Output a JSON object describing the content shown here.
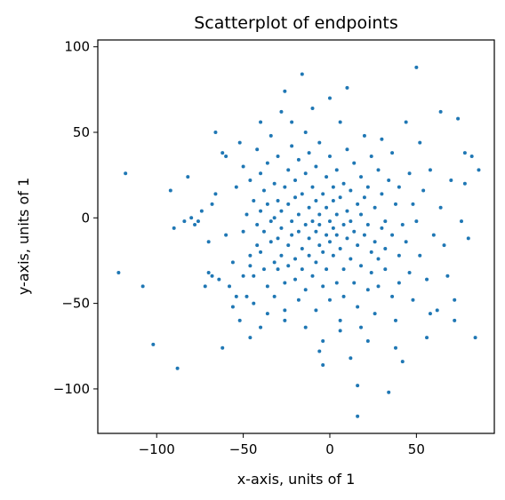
{
  "chart_data": {
    "type": "scatter",
    "title": "Scatterplot of endpoints",
    "xlabel": "x-axis, units of 1",
    "ylabel": "y-axis, units of 1",
    "xlim": [
      -134,
      95
    ],
    "ylim": [
      -126,
      104
    ],
    "xticks": [
      -100,
      -50,
      0,
      50
    ],
    "yticks": [
      -100,
      -50,
      0,
      50,
      100
    ],
    "xtick_labels": [
      "−100",
      "−50",
      "0",
      "50"
    ],
    "ytick_labels": [
      "−100",
      "−50",
      "0",
      "50",
      "100"
    ],
    "grid": false,
    "marker_color": "#1f77b4",
    "series": [
      {
        "points": [
          [
            -122,
            -32
          ],
          [
            -118,
            26
          ],
          [
            -108,
            -40
          ],
          [
            -102,
            -74
          ],
          [
            -92,
            16
          ],
          [
            -90,
            -6
          ],
          [
            -88,
            -88
          ],
          [
            -84,
            -2
          ],
          [
            -82,
            24
          ],
          [
            -80,
            0
          ],
          [
            -78,
            -4
          ],
          [
            -76,
            -2
          ],
          [
            -74,
            4
          ],
          [
            -72,
            -40
          ],
          [
            -70,
            -14
          ],
          [
            -70,
            -32
          ],
          [
            -68,
            8
          ],
          [
            -68,
            -34
          ],
          [
            -66,
            50
          ],
          [
            -66,
            14
          ],
          [
            -64,
            -36
          ],
          [
            -62,
            -76
          ],
          [
            -62,
            38
          ],
          [
            -60,
            36
          ],
          [
            -60,
            -10
          ],
          [
            -58,
            -40
          ],
          [
            -56,
            -26
          ],
          [
            -56,
            -52
          ],
          [
            -54,
            -46
          ],
          [
            -54,
            18
          ],
          [
            -52,
            44
          ],
          [
            -52,
            -60
          ],
          [
            -50,
            -34
          ],
          [
            -50,
            -8
          ],
          [
            -50,
            30
          ],
          [
            -48,
            -46
          ],
          [
            -48,
            2
          ],
          [
            -46,
            -22
          ],
          [
            -46,
            22
          ],
          [
            -46,
            -28
          ],
          [
            -44,
            -50
          ],
          [
            -44,
            10
          ],
          [
            -44,
            -34
          ],
          [
            -42,
            -16
          ],
          [
            -42,
            40
          ],
          [
            -42,
            -4
          ],
          [
            -40,
            56
          ],
          [
            -40,
            -20
          ],
          [
            -40,
            26
          ],
          [
            -40,
            4
          ],
          [
            -38,
            -30
          ],
          [
            -38,
            -8
          ],
          [
            -38,
            16
          ],
          [
            -36,
            -40
          ],
          [
            -36,
            -56
          ],
          [
            -36,
            8
          ],
          [
            -36,
            32
          ],
          [
            -34,
            48
          ],
          [
            -34,
            -14
          ],
          [
            -34,
            -2
          ],
          [
            -32,
            -26
          ],
          [
            -32,
            20
          ],
          [
            -32,
            -46
          ],
          [
            -32,
            0
          ],
          [
            -30,
            -12
          ],
          [
            -30,
            -30
          ],
          [
            -30,
            10
          ],
          [
            -30,
            36
          ],
          [
            -28,
            -22
          ],
          [
            -28,
            4
          ],
          [
            -28,
            62
          ],
          [
            -28,
            -6
          ],
          [
            -26,
            74
          ],
          [
            -26,
            -38
          ],
          [
            -26,
            18
          ],
          [
            -26,
            -54
          ],
          [
            -24,
            28
          ],
          [
            -24,
            -16
          ],
          [
            -24,
            8
          ],
          [
            -24,
            -28
          ],
          [
            -22,
            -10
          ],
          [
            -22,
            42
          ],
          [
            -22,
            -2
          ],
          [
            -22,
            56
          ],
          [
            -20,
            -24
          ],
          [
            -20,
            12
          ],
          [
            -20,
            -36
          ],
          [
            -20,
            22
          ],
          [
            -18,
            -8
          ],
          [
            -18,
            -48
          ],
          [
            -18,
            2
          ],
          [
            -18,
            34
          ],
          [
            -16,
            84
          ],
          [
            -16,
            -18
          ],
          [
            -16,
            14
          ],
          [
            -16,
            -30
          ],
          [
            -14,
            -4
          ],
          [
            -14,
            26
          ],
          [
            -14,
            -42
          ],
          [
            -14,
            50
          ],
          [
            -12,
            -12
          ],
          [
            -12,
            6
          ],
          [
            -12,
            -22
          ],
          [
            -12,
            38
          ],
          [
            -10,
            -2
          ],
          [
            -10,
            18
          ],
          [
            -10,
            -34
          ],
          [
            -10,
            64
          ],
          [
            -8,
            -8
          ],
          [
            -8,
            10
          ],
          [
            -8,
            -26
          ],
          [
            -8,
            30
          ],
          [
            -8,
            -54
          ],
          [
            -6,
            -16
          ],
          [
            -6,
            2
          ],
          [
            -6,
            -4
          ],
          [
            -6,
            44
          ],
          [
            -4,
            -72
          ],
          [
            -4,
            -20
          ],
          [
            -4,
            14
          ],
          [
            -4,
            -40
          ],
          [
            -4,
            -86
          ],
          [
            -2,
            -10
          ],
          [
            -2,
            6
          ],
          [
            -2,
            24
          ],
          [
            -2,
            -30
          ],
          [
            0,
            -2
          ],
          [
            0,
            -14
          ],
          [
            0,
            36
          ],
          [
            0,
            -48
          ],
          [
            0,
            70
          ],
          [
            2,
            -6
          ],
          [
            2,
            10
          ],
          [
            2,
            -22
          ],
          [
            2,
            18
          ],
          [
            4,
            -38
          ],
          [
            4,
            -10
          ],
          [
            4,
            2
          ],
          [
            4,
            28
          ],
          [
            6,
            -66
          ],
          [
            6,
            -18
          ],
          [
            6,
            12
          ],
          [
            6,
            56
          ],
          [
            8,
            -30
          ],
          [
            8,
            -4
          ],
          [
            8,
            20
          ],
          [
            8,
            -46
          ],
          [
            10,
            -12
          ],
          [
            10,
            4
          ],
          [
            10,
            40
          ],
          [
            10,
            76
          ],
          [
            12,
            -24
          ],
          [
            12,
            -2
          ],
          [
            12,
            16
          ],
          [
            12,
            -82
          ],
          [
            14,
            -38
          ],
          [
            14,
            -8
          ],
          [
            14,
            32
          ],
          [
            16,
            -116
          ],
          [
            16,
            -98
          ],
          [
            16,
            -16
          ],
          [
            16,
            8
          ],
          [
            16,
            -52
          ],
          [
            18,
            -28
          ],
          [
            18,
            2
          ],
          [
            18,
            24
          ],
          [
            18,
            -64
          ],
          [
            20,
            -10
          ],
          [
            20,
            12
          ],
          [
            20,
            48
          ],
          [
            22,
            -42
          ],
          [
            22,
            -4
          ],
          [
            22,
            18
          ],
          [
            24,
            -20
          ],
          [
            24,
            36
          ],
          [
            24,
            -32
          ],
          [
            26,
            -14
          ],
          [
            26,
            6
          ],
          [
            26,
            -56
          ],
          [
            28,
            -24
          ],
          [
            28,
            28
          ],
          [
            28,
            -40
          ],
          [
            30,
            -6
          ],
          [
            30,
            14
          ],
          [
            30,
            46
          ],
          [
            32,
            -18
          ],
          [
            32,
            -2
          ],
          [
            32,
            -30
          ],
          [
            34,
            -102
          ],
          [
            34,
            22
          ],
          [
            36,
            -46
          ],
          [
            36,
            -10
          ],
          [
            36,
            38
          ],
          [
            38,
            8
          ],
          [
            38,
            -60
          ],
          [
            40,
            -22
          ],
          [
            40,
            -38
          ],
          [
            40,
            18
          ],
          [
            42,
            -4
          ],
          [
            42,
            -84
          ],
          [
            44,
            56
          ],
          [
            44,
            -14
          ],
          [
            46,
            26
          ],
          [
            46,
            -32
          ],
          [
            48,
            -48
          ],
          [
            48,
            8
          ],
          [
            50,
            88
          ],
          [
            50,
            -2
          ],
          [
            52,
            44
          ],
          [
            52,
            -22
          ],
          [
            54,
            16
          ],
          [
            56,
            -70
          ],
          [
            56,
            -36
          ],
          [
            58,
            28
          ],
          [
            60,
            -10
          ],
          [
            62,
            -54
          ],
          [
            64,
            6
          ],
          [
            64,
            62
          ],
          [
            66,
            -16
          ],
          [
            68,
            -34
          ],
          [
            70,
            22
          ],
          [
            72,
            -48
          ],
          [
            74,
            58
          ],
          [
            76,
            -2
          ],
          [
            78,
            38
          ],
          [
            80,
            -12
          ],
          [
            82,
            36
          ],
          [
            84,
            -70
          ],
          [
            86,
            28
          ],
          [
            78,
            20
          ],
          [
            -46,
            -70
          ],
          [
            -40,
            -64
          ],
          [
            -26,
            -60
          ],
          [
            -14,
            -64
          ],
          [
            -6,
            -78
          ],
          [
            6,
            -60
          ],
          [
            22,
            -72
          ],
          [
            38,
            -76
          ],
          [
            58,
            -56
          ],
          [
            72,
            -60
          ]
        ]
      }
    ]
  }
}
